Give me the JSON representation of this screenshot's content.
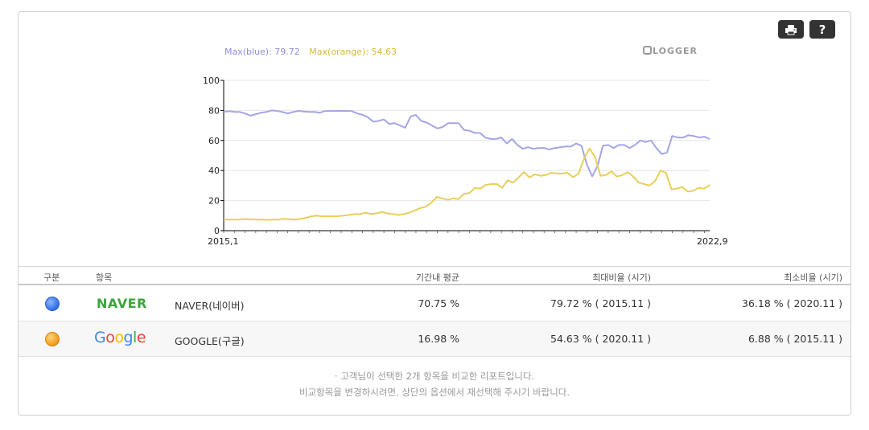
{
  "toolbar": {
    "print_icon": "printer-icon",
    "help_label": "?"
  },
  "legend": {
    "max_blue": "Max(blue): 79.72",
    "max_orange": "Max(orange): 54.63"
  },
  "brand": "LOGGER",
  "colors": {
    "blue_line": "#a5a5e6",
    "orange_line": "#e8cf5a",
    "axis": "#000000",
    "grid": "#e6e6e6"
  },
  "chart_data": {
    "type": "line",
    "x_tick_labels": [
      "2015,1",
      "2022,9"
    ],
    "y_ticks": [
      0,
      20,
      40,
      60,
      80,
      100
    ],
    "ylim": [
      0,
      100
    ],
    "grid": true,
    "series": [
      {
        "color": "#a5a5e6",
        "values": [
          79,
          79.5,
          79,
          79,
          78,
          76.5,
          77.5,
          78.5,
          79,
          80,
          79.7,
          79,
          78,
          79,
          79.7,
          79.3,
          79,
          79,
          78.5,
          79.6,
          79.6,
          79.7,
          79.7,
          79.7,
          79.5,
          78,
          77,
          75.5,
          72.5,
          73,
          74,
          71,
          71.5,
          70,
          68.5,
          76,
          77,
          73,
          72,
          70,
          68,
          69,
          71.5,
          71.5,
          71.5,
          67,
          66.5,
          65,
          65,
          62,
          61,
          61,
          62,
          58,
          61,
          57,
          54.5,
          55.5,
          54.5,
          55,
          55,
          54,
          55,
          55.5,
          56,
          56,
          58,
          56.5,
          44,
          36.18,
          43,
          56.5,
          57,
          55,
          57,
          57,
          55,
          57,
          60,
          59,
          60,
          55,
          51,
          52,
          63,
          62,
          62,
          63.5,
          63,
          62,
          62.5,
          61
        ]
      },
      {
        "color": "#e8cf5a",
        "values": [
          7.5,
          7.3,
          7.3,
          7.5,
          7.8,
          7.5,
          7.3,
          7.3,
          7.2,
          7.3,
          7.3,
          7.9,
          7.6,
          7.3,
          7.8,
          8.5,
          9.5,
          10,
          9.5,
          9.6,
          9.5,
          9.7,
          10,
          10.5,
          11,
          11,
          12,
          11,
          11.5,
          12.5,
          11.5,
          11,
          10.5,
          11,
          12,
          13.5,
          15,
          16,
          18.5,
          22.5,
          21.5,
          20.5,
          21.5,
          21,
          24.5,
          25,
          28.5,
          28,
          30.5,
          31,
          31,
          28.5,
          33.5,
          32,
          35.5,
          39,
          35.5,
          37.5,
          36.5,
          37,
          38.5,
          38,
          38,
          38.5,
          35.5,
          38,
          48,
          54.63,
          49,
          36.5,
          37,
          39.5,
          36,
          37,
          39,
          36,
          32,
          31,
          30,
          33,
          40,
          38.5,
          27.5,
          28,
          29,
          26,
          26.5,
          28.5,
          28,
          30.5
        ]
      }
    ]
  },
  "table": {
    "headers": {
      "division": "구분",
      "item": "항목",
      "avg": "기간내 평균",
      "max": "최대비율 (시기)",
      "min": "최소비율 (시기)"
    },
    "rows": [
      {
        "logo": "NAVER",
        "name": "NAVER(네이버)",
        "avg": "70.75 %",
        "max": "79.72 % ( 2015.11 )",
        "min": "36.18 % ( 2020.11 )"
      },
      {
        "logo": "Google",
        "name": "GOOGLE(구글)",
        "avg": "16.98 %",
        "max": "54.63 % ( 2020.11 )",
        "min": "6.88 % ( 2015.11 )"
      }
    ]
  },
  "notes": {
    "line1": "· 고객님이 선택한 2개 항목을 비교한 리포트입니다.",
    "line2": "비교항목을 변경하시려면, 상단의 옵션에서 재선택해 주시기 바랍니다."
  }
}
